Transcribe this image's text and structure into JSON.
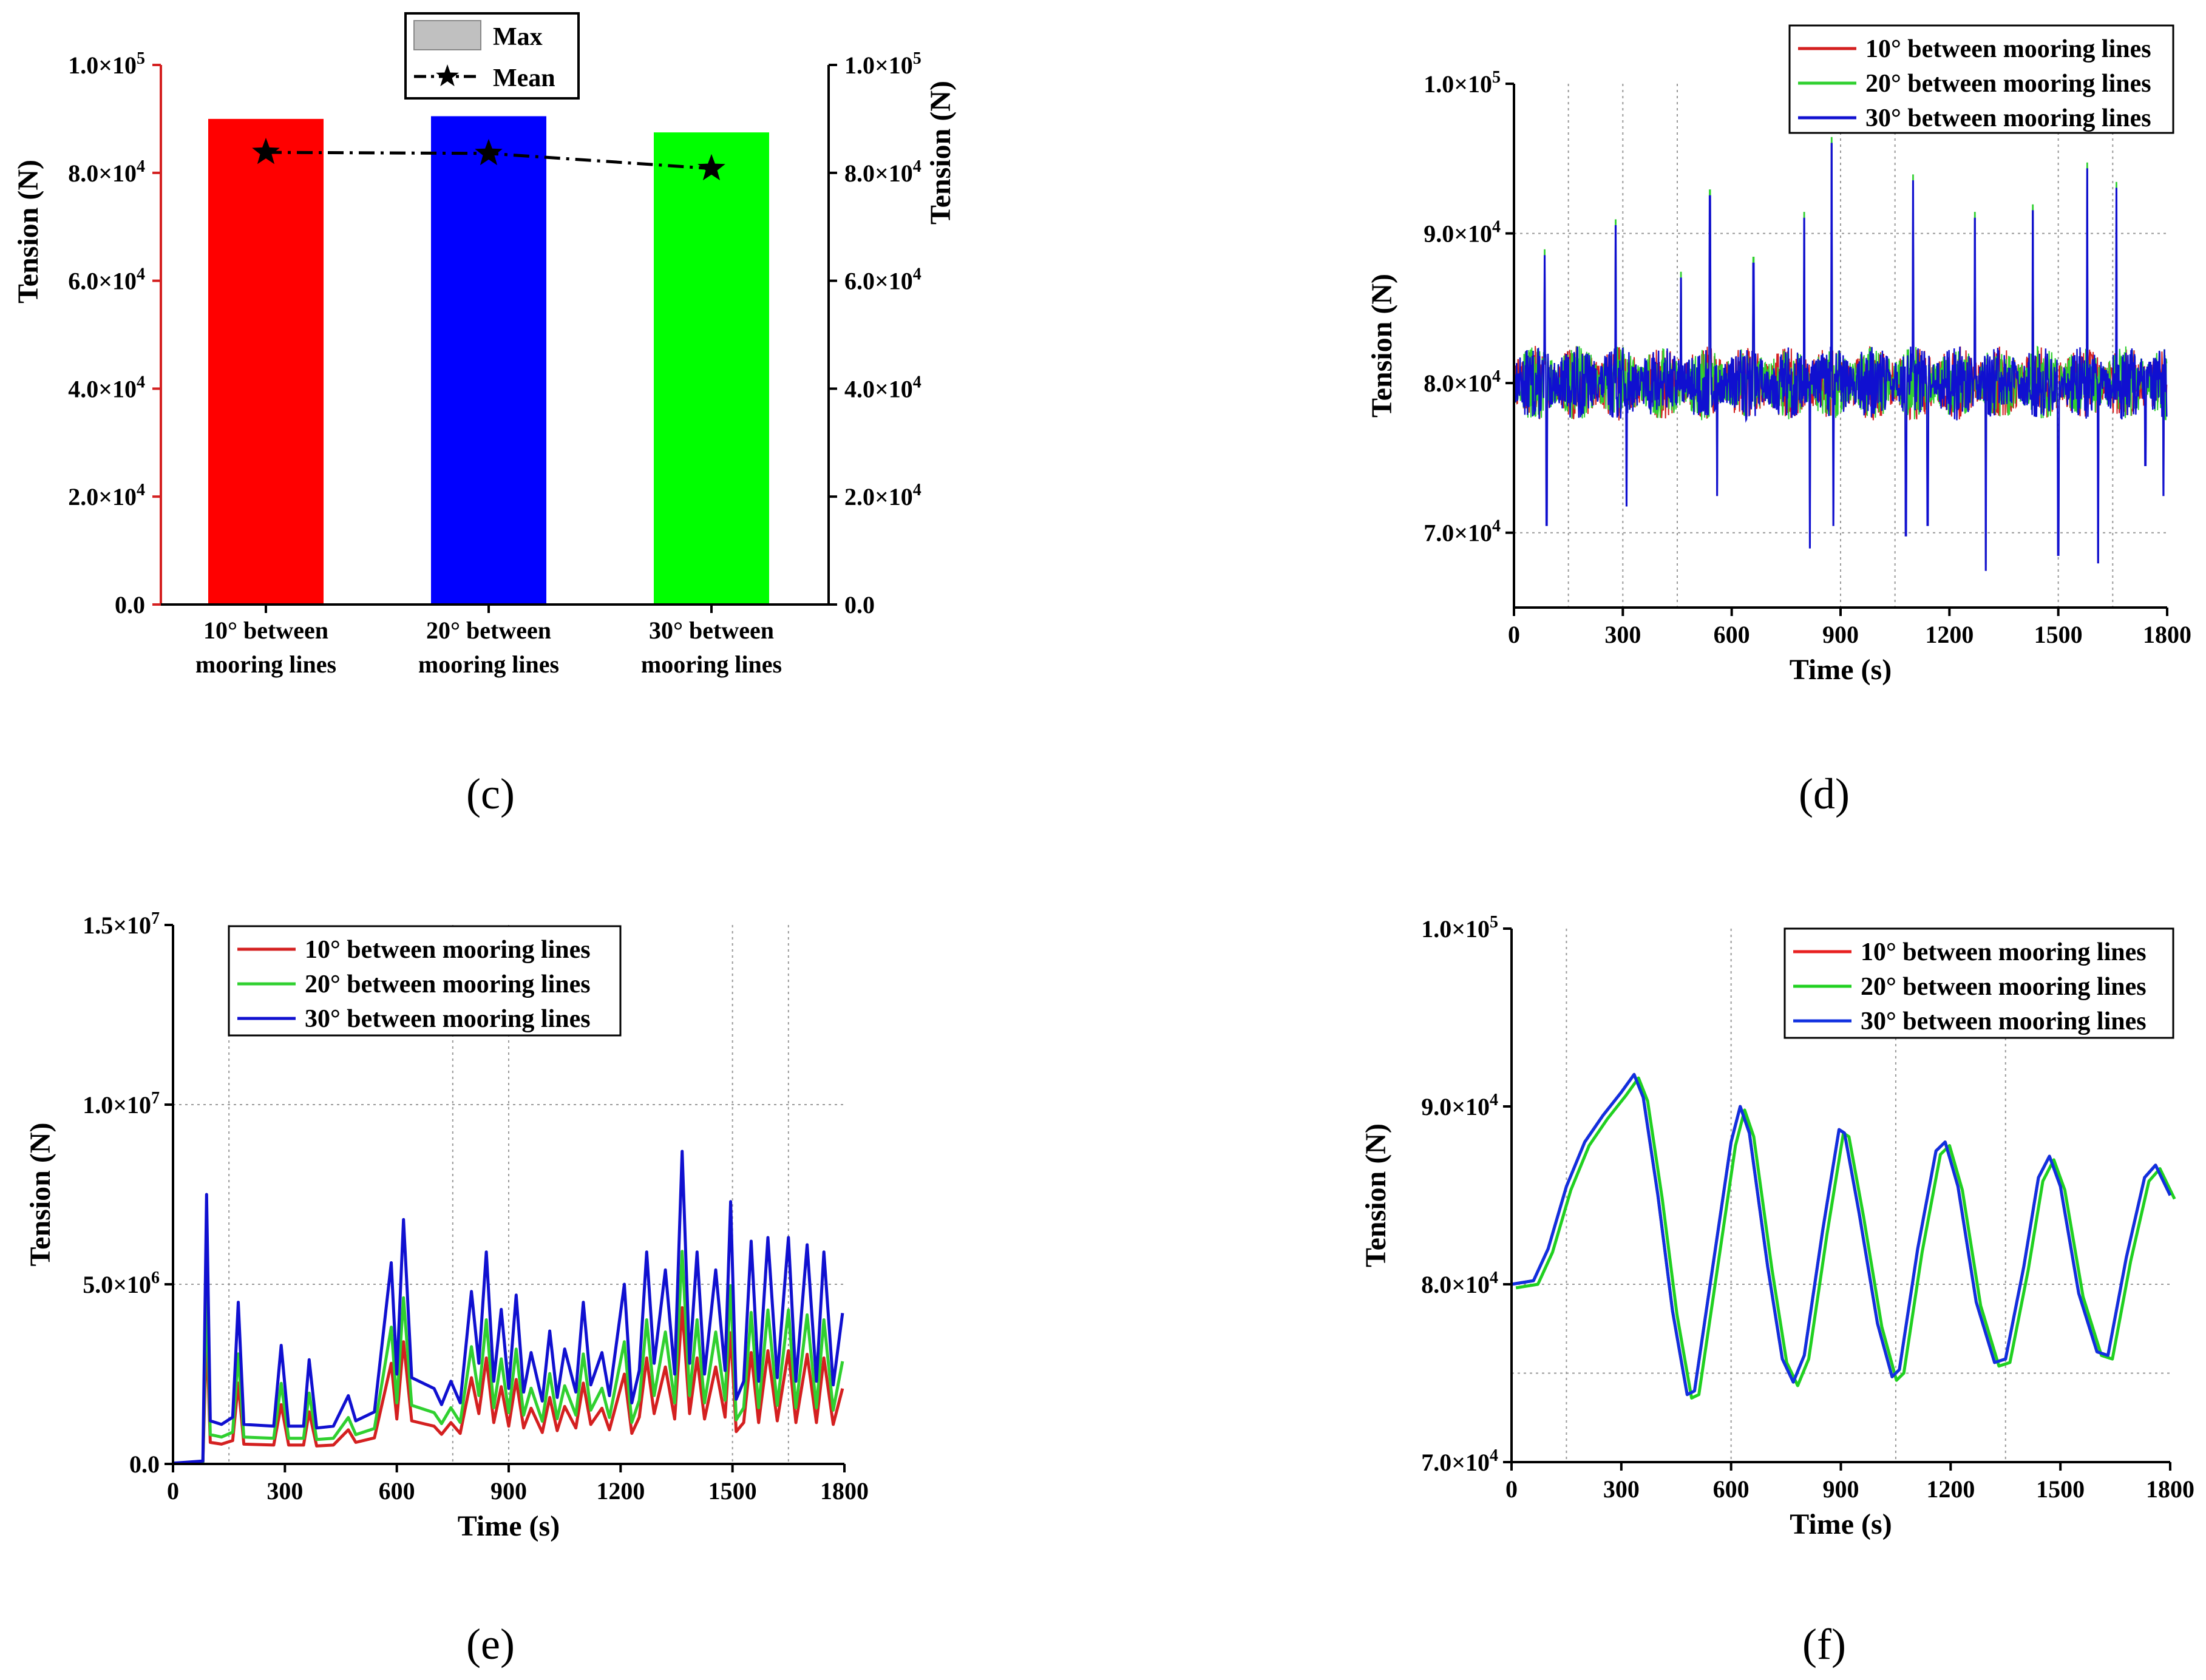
{
  "chart_data": [
    {
      "id": "c",
      "type": "bar",
      "caption": "c",
      "categories": [
        [
          "10° between",
          "mooring lines"
        ],
        [
          "20° between",
          "mooring lines"
        ],
        [
          "30° between",
          "mooring lines"
        ]
      ],
      "series": [
        {
          "name": "Max",
          "kind": "bar",
          "values": [
            90000,
            90500,
            87500
          ],
          "colors": [
            "#ff0000",
            "#0000ff",
            "#00ff00"
          ]
        },
        {
          "name": "Mean",
          "kind": "line-star",
          "values": [
            83800,
            83600,
            80800
          ]
        }
      ],
      "ylabel_left": "Tension (N)",
      "ylabel_right": "Tension (N)",
      "ylim": [
        0,
        100000
      ],
      "yticks": [
        {
          "v": 0,
          "m": "0.0",
          "e": ""
        },
        {
          "v": 20000,
          "m": "2.0×10",
          "e": "4"
        },
        {
          "v": 40000,
          "m": "4.0×10",
          "e": "4"
        },
        {
          "v": 60000,
          "m": "6.0×10",
          "e": "4"
        },
        {
          "v": 80000,
          "m": "8.0×10",
          "e": "4"
        },
        {
          "v": 100000,
          "m": "1.0×10",
          "e": "5"
        }
      ],
      "left_axis_color": "#d42020",
      "legend": [
        {
          "label": "Max",
          "swatch": "#c0c0c0"
        },
        {
          "label": "Mean"
        }
      ]
    },
    {
      "id": "d",
      "type": "line",
      "caption": "d",
      "xlabel": "Time (s)",
      "ylabel": "Tension (N)",
      "xlim": [
        0,
        1800
      ],
      "ylim": [
        65000,
        100000
      ],
      "xticks": [
        0,
        300,
        600,
        900,
        1200,
        1500,
        1800
      ],
      "yticks": [
        {
          "v": 70000,
          "m": "7.0×10",
          "e": "4"
        },
        {
          "v": 80000,
          "m": "8.0×10",
          "e": "4"
        },
        {
          "v": 90000,
          "m": "9.0×10",
          "e": "4"
        },
        {
          "v": 100000,
          "m": "1.0×10",
          "e": "5"
        }
      ],
      "gridlines_y": [
        70000,
        90000
      ],
      "gridlines_x": [
        150,
        300,
        450,
        900,
        1050,
        1500,
        1650
      ],
      "series": [
        {
          "name": "10° between mooring lines",
          "color": "#d42020"
        },
        {
          "name": "20° between mooring lines",
          "color": "#30d030"
        },
        {
          "name": "30° between mooring lines",
          "color": "#1010d0"
        }
      ],
      "noise": {
        "base": 80000,
        "amp": 2500,
        "seed": 7
      },
      "spikes": [
        {
          "t": 85,
          "v": 88500
        },
        {
          "t": 90,
          "v": 70500
        },
        {
          "t": 280,
          "v": 90500
        },
        {
          "t": 310,
          "v": 71800
        },
        {
          "t": 460,
          "v": 87000
        },
        {
          "t": 540,
          "v": 92500
        },
        {
          "t": 560,
          "v": 72500
        },
        {
          "t": 660,
          "v": 88000
        },
        {
          "t": 800,
          "v": 91000
        },
        {
          "t": 815,
          "v": 69000
        },
        {
          "t": 875,
          "v": 96000
        },
        {
          "t": 880,
          "v": 70500
        },
        {
          "t": 1080,
          "v": 69800
        },
        {
          "t": 1100,
          "v": 93500
        },
        {
          "t": 1140,
          "v": 70500
        },
        {
          "t": 1270,
          "v": 91000
        },
        {
          "t": 1300,
          "v": 67500
        },
        {
          "t": 1430,
          "v": 91500
        },
        {
          "t": 1500,
          "v": 68500
        },
        {
          "t": 1580,
          "v": 94300
        },
        {
          "t": 1610,
          "v": 68000
        },
        {
          "t": 1660,
          "v": 93000
        },
        {
          "t": 1740,
          "v": 74500
        },
        {
          "t": 1790,
          "v": 72500
        }
      ]
    },
    {
      "id": "e",
      "type": "line",
      "caption": "e",
      "xlabel": "Time (s)",
      "ylabel": "Tension (N)",
      "xlim": [
        0,
        1800
      ],
      "ylim": [
        0,
        15000000
      ],
      "xticks": [
        0,
        300,
        600,
        900,
        1200,
        1500,
        1800
      ],
      "yticks": [
        {
          "v": 0,
          "m": "0.0",
          "e": ""
        },
        {
          "v": 5000000,
          "m": "5.0×10",
          "e": "6"
        },
        {
          "v": 10000000,
          "m": "1.0×10",
          "e": "7"
        },
        {
          "v": 15000000,
          "m": "1.5×10",
          "e": "7"
        }
      ],
      "gridlines_y": [
        5000000,
        10000000
      ],
      "gridlines_x": [
        150,
        750,
        900,
        1500,
        1650
      ],
      "series": [
        {
          "name": "10° between mooring lines",
          "color": "#d42020",
          "scale": 0.5
        },
        {
          "name": "20° between mooring lines",
          "color": "#30d030",
          "scale": 0.68
        },
        {
          "name": "30° between mooring lines",
          "color": "#1010d0",
          "scale": 1.0
        }
      ],
      "baseline": [
        [
          0,
          20000
        ],
        [
          80,
          80000
        ],
        [
          90,
          7500000
        ],
        [
          100,
          1200000
        ],
        [
          130,
          1100000
        ],
        [
          160,
          1300000
        ],
        [
          175,
          4500000
        ],
        [
          190,
          1100000
        ],
        [
          270,
          1050000
        ],
        [
          290,
          3300000
        ],
        [
          310,
          1050000
        ],
        [
          350,
          1050000
        ],
        [
          365,
          2900000
        ],
        [
          385,
          1000000
        ],
        [
          430,
          1050000
        ],
        [
          470,
          1900000
        ],
        [
          490,
          1200000
        ],
        [
          540,
          1450000
        ],
        [
          585,
          5600000
        ],
        [
          600,
          2500000
        ],
        [
          618,
          6800000
        ],
        [
          640,
          2400000
        ],
        [
          700,
          2100000
        ],
        [
          720,
          1650000
        ],
        [
          745,
          2300000
        ],
        [
          770,
          1700000
        ],
        [
          800,
          4800000
        ],
        [
          820,
          2800000
        ],
        [
          840,
          5900000
        ],
        [
          860,
          2300000
        ],
        [
          880,
          4300000
        ],
        [
          900,
          2100000
        ],
        [
          920,
          4700000
        ],
        [
          940,
          2000000
        ],
        [
          960,
          3100000
        ],
        [
          990,
          1750000
        ],
        [
          1010,
          3700000
        ],
        [
          1030,
          1850000
        ],
        [
          1050,
          3200000
        ],
        [
          1080,
          2000000
        ],
        [
          1100,
          4500000
        ],
        [
          1120,
          2200000
        ],
        [
          1150,
          3100000
        ],
        [
          1170,
          1900000
        ],
        [
          1210,
          5000000
        ],
        [
          1230,
          1700000
        ],
        [
          1250,
          2600000
        ],
        [
          1270,
          5900000
        ],
        [
          1290,
          2800000
        ],
        [
          1320,
          5400000
        ],
        [
          1345,
          2500000
        ],
        [
          1365,
          8700000
        ],
        [
          1385,
          2800000
        ],
        [
          1405,
          5900000
        ],
        [
          1425,
          2500000
        ],
        [
          1455,
          5400000
        ],
        [
          1480,
          2600000
        ],
        [
          1495,
          7300000
        ],
        [
          1510,
          1800000
        ],
        [
          1530,
          2300000
        ],
        [
          1550,
          6200000
        ],
        [
          1570,
          2300000
        ],
        [
          1595,
          6300000
        ],
        [
          1620,
          2400000
        ],
        [
          1650,
          6300000
        ],
        [
          1670,
          2300000
        ],
        [
          1700,
          6100000
        ],
        [
          1725,
          2300000
        ],
        [
          1745,
          5900000
        ],
        [
          1770,
          2200000
        ],
        [
          1795,
          4200000
        ]
      ]
    },
    {
      "id": "f",
      "type": "line",
      "caption": "f",
      "xlabel": "Time (s)",
      "ylabel": "Tension (N)",
      "xlim": [
        0,
        1800
      ],
      "ylim": [
        70000,
        100000
      ],
      "xticks": [
        0,
        300,
        600,
        900,
        1200,
        1500,
        1800
      ],
      "yticks": [
        {
          "v": 70000,
          "m": "7.0×10",
          "e": "4"
        },
        {
          "v": 80000,
          "m": "8.0×10",
          "e": "4"
        },
        {
          "v": 90000,
          "m": "9.0×10",
          "e": "4"
        },
        {
          "v": 100000,
          "m": "1.0×10",
          "e": "5"
        }
      ],
      "gridlines_y": [
        75000,
        80000
      ],
      "gridlines_x": [
        150,
        600,
        1050,
        1350
      ],
      "series": [
        {
          "name": "10° between mooring lines",
          "color": "#e82020"
        },
        {
          "name": "20° between mooring lines",
          "color": "#20d020"
        },
        {
          "name": "30° between mooring lines",
          "color": "#1030e0"
        }
      ],
      "curve": [
        [
          0,
          80000
        ],
        [
          60,
          80200
        ],
        [
          100,
          82000
        ],
        [
          150,
          85500
        ],
        [
          200,
          88000
        ],
        [
          250,
          89500
        ],
        [
          300,
          90800
        ],
        [
          335,
          91800
        ],
        [
          360,
          90500
        ],
        [
          400,
          85000
        ],
        [
          440,
          78500
        ],
        [
          480,
          73800
        ],
        [
          500,
          74000
        ],
        [
          550,
          81000
        ],
        [
          600,
          88000
        ],
        [
          625,
          90000
        ],
        [
          650,
          88500
        ],
        [
          700,
          81000
        ],
        [
          740,
          75800
        ],
        [
          770,
          74500
        ],
        [
          800,
          76000
        ],
        [
          850,
          83000
        ],
        [
          895,
          88700
        ],
        [
          910,
          88500
        ],
        [
          950,
          84000
        ],
        [
          1000,
          77800
        ],
        [
          1040,
          74800
        ],
        [
          1060,
          75200
        ],
        [
          1110,
          82000
        ],
        [
          1160,
          87500
        ],
        [
          1185,
          88000
        ],
        [
          1220,
          85500
        ],
        [
          1270,
          79000
        ],
        [
          1320,
          75600
        ],
        [
          1350,
          75800
        ],
        [
          1400,
          81000
        ],
        [
          1440,
          86000
        ],
        [
          1470,
          87200
        ],
        [
          1500,
          85500
        ],
        [
          1550,
          79500
        ],
        [
          1600,
          76200
        ],
        [
          1630,
          76000
        ],
        [
          1680,
          81500
        ],
        [
          1730,
          86000
        ],
        [
          1760,
          86700
        ],
        [
          1800,
          85000
        ]
      ]
    }
  ],
  "captions": {
    "c": "(c)",
    "d": "(d)",
    "e": "(e)",
    "f": "(f)"
  }
}
